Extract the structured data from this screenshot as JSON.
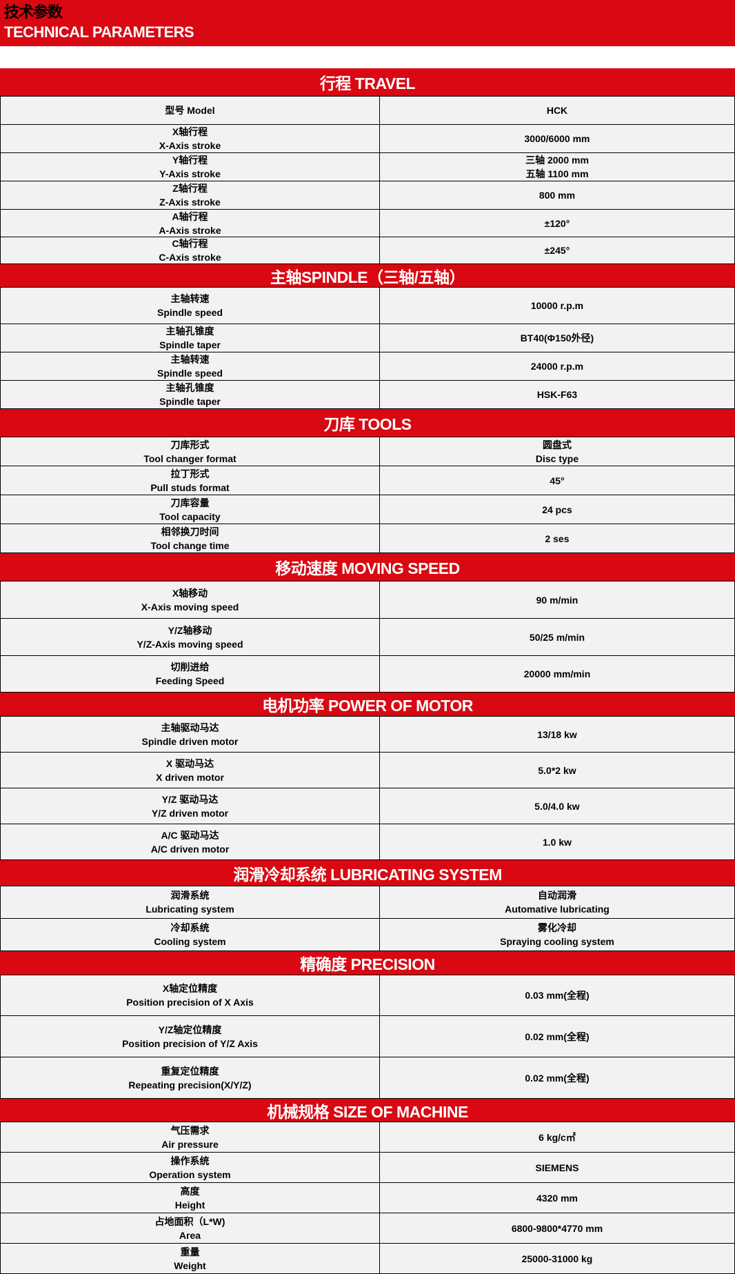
{
  "title": {
    "cn": "技术参数",
    "en": "TECHNICAL PARAMETERS"
  },
  "colors": {
    "accent": "#d90812",
    "cell_bg": "#f2f2f2"
  },
  "sections": [
    {
      "title": "行程 TRAVEL",
      "rows": [
        {
          "label": [
            "型号 Model"
          ],
          "value": [
            "HCK"
          ]
        },
        {
          "label": [
            "X轴行程",
            "X-Axis stroke"
          ],
          "value": [
            "3000/6000 mm"
          ]
        },
        {
          "label": [
            "Y轴行程",
            "Y-Axis stroke"
          ],
          "value": [
            "三轴 2000 mm",
            "五轴 1100 mm"
          ]
        },
        {
          "label": [
            "Z轴行程",
            "Z-Axis stroke"
          ],
          "value": [
            "800 mm"
          ]
        },
        {
          "label": [
            "A轴行程",
            "A-Axis stroke"
          ],
          "value": [
            "±120°"
          ]
        },
        {
          "label": [
            "C轴行程",
            "C-Axis stroke"
          ],
          "value": [
            "±245°"
          ]
        }
      ]
    },
    {
      "title": "主轴SPINDLE（三轴/五轴）",
      "rows": [
        {
          "label": [
            "主轴转速",
            "Spindle speed"
          ],
          "value": [
            "10000 r.p.m"
          ]
        },
        {
          "label": [
            "主轴孔锥度",
            "Spindle taper"
          ],
          "value": [
            "BT40(Φ150外径)"
          ]
        },
        {
          "label": [
            "主轴转速",
            "Spindle speed"
          ],
          "value": [
            "24000 r.p.m"
          ]
        },
        {
          "label": [
            "主轴孔锥度",
            "Spindle taper"
          ],
          "value": [
            "HSK-F63"
          ]
        }
      ]
    },
    {
      "title": "刀库 TOOLS",
      "rows": [
        {
          "label": [
            "刀库形式",
            "Tool changer format"
          ],
          "value": [
            "圆盘式",
            "Disc type"
          ]
        },
        {
          "label": [
            "拉丁形式",
            "Pull studs format"
          ],
          "value": [
            "45°"
          ]
        },
        {
          "label": [
            "刀库容量",
            "Tool capacity"
          ],
          "value": [
            "24 pcs"
          ]
        },
        {
          "label": [
            "相邻换刀时间",
            "Tool change time"
          ],
          "value": [
            "2 ses"
          ]
        }
      ]
    },
    {
      "title": "移动速度 MOVING SPEED",
      "rows": [
        {
          "label": [
            "X轴移动",
            "X-Axis moving speed"
          ],
          "value": [
            "90 m/min"
          ]
        },
        {
          "label": [
            "Y/Z轴移动",
            "Y/Z-Axis moving speed"
          ],
          "value": [
            "50/25 m/min"
          ]
        },
        {
          "label": [
            "切削进给",
            "Feeding Speed"
          ],
          "value": [
            "20000 mm/min"
          ]
        }
      ]
    },
    {
      "title": "电机功率 POWER OF MOTOR",
      "rows": [
        {
          "label": [
            "主轴驱动马达",
            "Spindle driven motor"
          ],
          "value": [
            "13/18 kw"
          ]
        },
        {
          "label": [
            "X 驱动马达",
            "X driven motor"
          ],
          "value": [
            "5.0*2 kw"
          ]
        },
        {
          "label": [
            "Y/Z 驱动马达",
            "Y/Z driven motor"
          ],
          "value": [
            "5.0/4.0 kw"
          ]
        },
        {
          "label": [
            "A/C 驱动马达",
            "A/C driven motor"
          ],
          "value": [
            "1.0 kw"
          ]
        }
      ]
    },
    {
      "title": "润滑冷却系统 LUBRICATING SYSTEM",
      "rows": [
        {
          "label": [
            "润滑系统",
            "Lubricating system"
          ],
          "value": [
            "自动润滑",
            "Automative lubricating"
          ]
        },
        {
          "label": [
            "冷却系统",
            "Cooling system"
          ],
          "value": [
            "雾化冷却",
            "Spraying cooling system"
          ]
        }
      ]
    },
    {
      "title": "精确度 PRECISION",
      "rows": [
        {
          "label": [
            "X轴定位精度",
            "Position precision of X Axis"
          ],
          "value": [
            "0.03 mm(全程)"
          ]
        },
        {
          "label": [
            "Y/Z轴定位精度",
            "Position precision of Y/Z Axis"
          ],
          "value": [
            "0.02 mm(全程)"
          ]
        },
        {
          "label": [
            "重复定位精度",
            "Repeating precision(X/Y/Z)"
          ],
          "value": [
            "0.02 mm(全程)"
          ]
        }
      ]
    },
    {
      "title": "机械规格 SIZE OF MACHINE",
      "rows": [
        {
          "label": [
            "气压需求",
            "Air pressure"
          ],
          "value": [
            "6 kg/c㎡"
          ]
        },
        {
          "label": [
            "操作系统",
            "Operation system"
          ],
          "value": [
            "SIEMENS"
          ]
        },
        {
          "label": [
            "高度",
            "Height"
          ],
          "value": [
            "4320 mm"
          ]
        },
        {
          "label": [
            "占地面积（L*W)",
            "Area"
          ],
          "value": [
            "6800-9800*4770 mm"
          ]
        },
        {
          "label": [
            "重量",
            "Weight"
          ],
          "value": [
            "25000-31000 kg"
          ]
        }
      ]
    }
  ]
}
